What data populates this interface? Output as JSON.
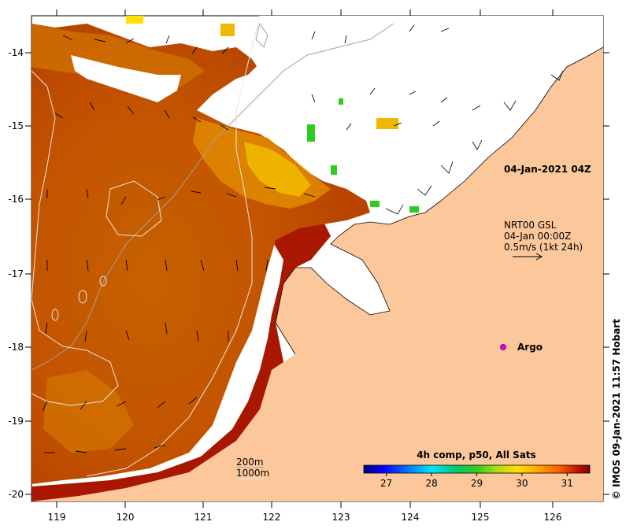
{
  "title_time": "04-Jan-2021 04Z",
  "current_legend": {
    "line1": "NRT00 GSL",
    "line2": "04-Jan 00:00Z",
    "line3": "0.5m/s (1kt 24h)"
  },
  "argo_label": "Argo",
  "contour_legend": {
    "line1": "200m",
    "line2": "1000m"
  },
  "colorbar": {
    "title": "4h comp, p50, All Sats",
    "ticks": [
      "27",
      "28",
      "29",
      "30",
      "31"
    ],
    "range": [
      26.5,
      31.5
    ],
    "colors": [
      "#00007f",
      "#0000ff",
      "#007fff",
      "#00e5ff",
      "#00c87a",
      "#2ecc1f",
      "#9fdc1a",
      "#ffe000",
      "#ffa000",
      "#ff5a00",
      "#c41800",
      "#7f0000"
    ]
  },
  "x_axis": {
    "labels": [
      "119",
      "120",
      "121",
      "122",
      "123",
      "124",
      "125",
      "126"
    ]
  },
  "y_axis": {
    "labels": [
      "-14",
      "-15",
      "-16",
      "-17",
      "-18",
      "-19",
      "-20"
    ]
  },
  "credit": "© IMOS 09-Jan-2021 11:57 Hobart",
  "colors": {
    "land": "#fcc89b",
    "sst_warm": "#c14f00",
    "sst_hot": "#a81800",
    "sst_mid": "#e08a00",
    "sst_light": "#f0b800",
    "argo": "#e000e0"
  }
}
